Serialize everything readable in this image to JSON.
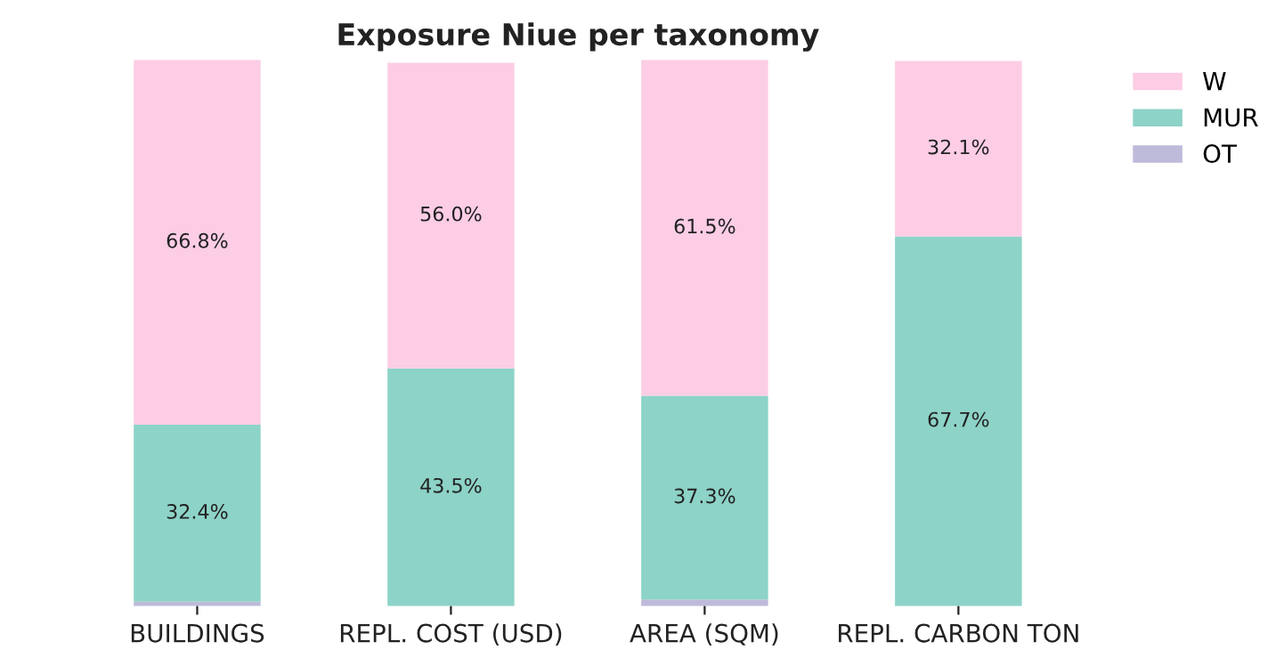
{
  "chart_data": {
    "type": "bar",
    "title": "Exposure Niue per taxonomy",
    "stacked": true,
    "categories": [
      "BUILDINGS",
      "REPL. COST (USD)",
      "AREA (SQM)",
      "REPL. CARBON TON"
    ],
    "series": [
      {
        "name": "OT",
        "color": "#bebada",
        "values": [
          0.8,
          null,
          1.2,
          null
        ],
        "value_labels": [
          null,
          null,
          null,
          null
        ]
      },
      {
        "name": "MUR",
        "color": "#8dd3c7",
        "values": [
          32.4,
          43.5,
          37.3,
          67.7
        ],
        "value_labels": [
          "32.4%",
          "43.5%",
          "37.3%",
          "67.7%"
        ]
      },
      {
        "name": "W",
        "color": "#fccde5",
        "values": [
          66.8,
          56.0,
          61.5,
          32.1
        ],
        "value_labels": [
          "66.8%",
          "56.0%",
          "61.5%",
          "32.1%"
        ]
      }
    ],
    "ylim": [
      0,
      100
    ],
    "tick_labels": "x",
    "legend": "top right",
    "grid": false
  }
}
